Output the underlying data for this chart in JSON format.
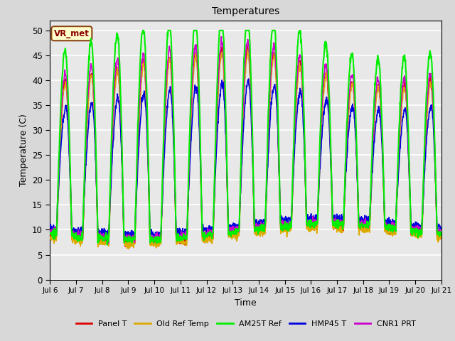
{
  "title": "Temperatures",
  "ylabel": "Temperature (C)",
  "xlabel": "Time",
  "station_label": "VR_met",
  "ylim": [
    0,
    52
  ],
  "yticks": [
    0,
    5,
    10,
    15,
    20,
    25,
    30,
    35,
    40,
    45,
    50
  ],
  "xtick_labels": [
    "Jul 6",
    "Jul 7",
    "Jul 8",
    "Jul 9",
    "Jul 10",
    "Jul 11",
    "Jul 12",
    "Jul 13",
    "Jul 14",
    "Jul 15",
    "Jul 16",
    "Jul 17",
    "Jul 18",
    "Jul 19",
    "Jul 20",
    "Jul 21"
  ],
  "series": {
    "Panel T": {
      "color": "#dd0000",
      "lw": 1.2
    },
    "Old Ref Temp": {
      "color": "#ddaa00",
      "lw": 1.2
    },
    "AM25T Ref": {
      "color": "#00ee00",
      "lw": 1.5
    },
    "HMP45 T": {
      "color": "#0000dd",
      "lw": 1.2
    },
    "CNR1 PRT": {
      "color": "#cc00cc",
      "lw": 1.2
    }
  },
  "background_color": "#e8e8e8",
  "grid_color": "#ffffff"
}
